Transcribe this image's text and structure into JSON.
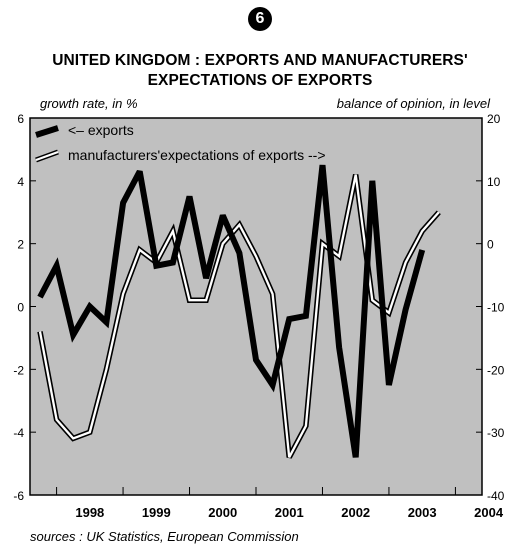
{
  "badge": "6",
  "title_line1": "UNITED KINGDOM : EXPORTS AND MANUFACTURERS'",
  "title_line2": "EXPECTATIONS OF EXPORTS",
  "source": "sources : UK Statistics, European Commission",
  "chart_data": {
    "type": "line",
    "title": "UNITED KINGDOM : EXPORTS AND MANUFACTURERS' EXPECTATIONS OF EXPORTS",
    "ylabel_left": "growth rate, in %",
    "ylabel_right": "balance of opinion, in level",
    "ylim_left": [
      -6,
      6
    ],
    "ylim_right": [
      -40,
      20
    ],
    "yticks_left": [
      "6",
      "4",
      "2",
      "0",
      "-2",
      "-4",
      "-6"
    ],
    "yticks_right": [
      "20",
      "10",
      "0",
      "-10",
      "-20",
      "-30",
      "-40"
    ],
    "x_labels": [
      "1998",
      "1999",
      "2000",
      "2001",
      "2002",
      "2003",
      "2004"
    ],
    "x_range": [
      1997.6,
      2004.4
    ],
    "grid": false,
    "background_color": "#c0c0c0",
    "legend_placement": "top-left",
    "series": [
      {
        "name": "<– exports",
        "axis": "left",
        "style": "thick-black",
        "x": [
          1997.75,
          1998.0,
          1998.25,
          1998.5,
          1998.75,
          1999.0,
          1999.25,
          1999.5,
          1999.75,
          2000.0,
          2000.25,
          2000.5,
          2000.75,
          2001.0,
          2001.25,
          2001.5,
          2001.75,
          2002.0,
          2002.25,
          2002.5,
          2002.75,
          2003.0,
          2003.25,
          2003.5
        ],
        "values": [
          0.3,
          1.3,
          -0.9,
          0.0,
          -0.5,
          3.3,
          4.3,
          1.3,
          1.4,
          3.5,
          0.9,
          2.9,
          1.7,
          -1.7,
          -2.5,
          -0.4,
          -0.3,
          4.5,
          -1.3,
          -4.8,
          4.0,
          -2.5,
          -0.1,
          1.8
        ]
      },
      {
        "name": "manufacturers'expectations of exports -->",
        "axis": "right",
        "style": "double-outline",
        "x": [
          1997.75,
          1998.0,
          1998.25,
          1998.5,
          1998.75,
          1999.0,
          1999.25,
          1999.5,
          1999.75,
          2000.0,
          2000.25,
          2000.5,
          2000.75,
          2001.0,
          2001.25,
          2001.5,
          2001.75,
          2002.0,
          2002.25,
          2002.5,
          2002.75,
          2003.0,
          2003.25,
          2003.5,
          2003.75
        ],
        "values": [
          -14,
          -28,
          -31,
          -30,
          -20,
          -8,
          -1,
          -3,
          2,
          -9,
          -9,
          0,
          3,
          -2,
          -8,
          -34,
          -29,
          0,
          -2,
          11,
          -9,
          -11,
          -3,
          2,
          5
        ]
      }
    ]
  }
}
